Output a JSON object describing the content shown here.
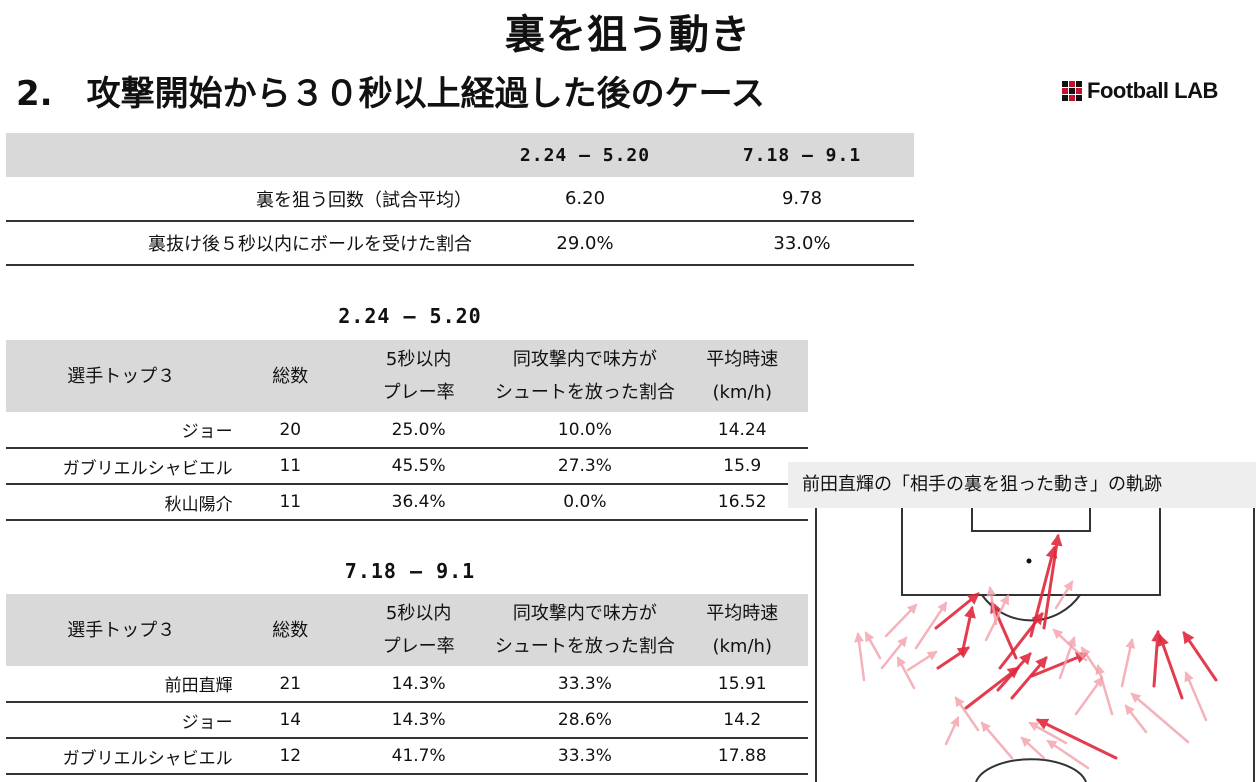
{
  "title": "裏を狙う動き",
  "subtitle": "2.　攻撃開始から３０秒以上経過した後のケース",
  "logo": {
    "text": "Football LAB"
  },
  "summary": {
    "periods": [
      "2.24 – 5.20",
      "7.18 – 9.1"
    ],
    "rows": [
      {
        "label": "裏を狙う回数（試合平均）",
        "values": [
          "6.20",
          "9.78"
        ]
      },
      {
        "label": "裏抜け後５秒以内にボールを受けた割合",
        "values": [
          "29.0%",
          "33.0%"
        ]
      }
    ]
  },
  "table_headers": {
    "name": "選手トップ３",
    "total": "総数",
    "play_rate_line1": "5秒以内",
    "play_rate_line2": "プレー率",
    "shot_rate_line1": "同攻撃内で味方が",
    "shot_rate_line2": "シュートを放った割合",
    "speed_line1": "平均時速",
    "speed_line2": "(km/h)"
  },
  "period1": {
    "title": "2.24 – 5.20",
    "players": [
      {
        "name": "ジョー",
        "total": "20",
        "play_rate": "25.0%",
        "shot_rate": "10.0%",
        "speed": "14.24"
      },
      {
        "name": "ガブリエルシャビエル",
        "total": "11",
        "play_rate": "45.5%",
        "shot_rate": "27.3%",
        "speed": "15.9"
      },
      {
        "name": "秋山陽介",
        "total": "11",
        "play_rate": "36.4%",
        "shot_rate": "0.0%",
        "speed": "16.52"
      }
    ]
  },
  "period2": {
    "title": "7.18 – 9.1",
    "players": [
      {
        "name": "前田直輝",
        "total": "21",
        "play_rate": "14.3%",
        "shot_rate": "33.3%",
        "speed": "15.91"
      },
      {
        "name": "ジョー",
        "total": "14",
        "play_rate": "14.3%",
        "shot_rate": "28.6%",
        "speed": "14.2"
      },
      {
        "name": "ガブリエルシャビエル",
        "total": "12",
        "play_rate": "41.7%",
        "shot_rate": "33.3%",
        "speed": "17.88"
      }
    ]
  },
  "pitch": {
    "caption": "前田直輝の「相手の裏を狙った動き」の軌跡",
    "line_color": "#333333",
    "arrow_color": "#e0283c"
  }
}
